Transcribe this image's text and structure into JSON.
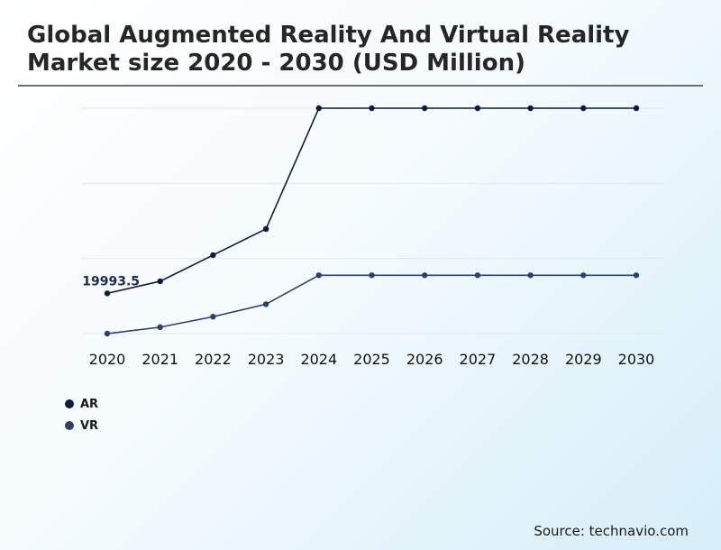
{
  "page": {
    "title": "Global Augmented Reality And Virtual Reality Market size 2020 - 2030 (USD Million)",
    "source": "Source: technavio.com"
  },
  "chart_data": {
    "type": "line",
    "title": "Global Augmented Reality And Virtual Reality Market size 2020 - 2030 (USD Million)",
    "xlabel": "",
    "ylabel": "",
    "categories": [
      "2020",
      "2021",
      "2022",
      "2023",
      "2024",
      "2025",
      "2026",
      "2027",
      "2028",
      "2029",
      "2030"
    ],
    "ylim": [
      10000,
      66000
    ],
    "grid": true,
    "legend_position": "bottom-left",
    "series": [
      {
        "name": "AR",
        "color": "#0d1b3e",
        "values": [
          19993.5,
          23000,
          29500,
          36000,
          66000,
          66000,
          66000,
          66000,
          66000,
          66000,
          66000
        ]
      },
      {
        "name": "VR",
        "color": "#2e3f6e",
        "values": [
          10000,
          11600,
          14200,
          17300,
          24500,
          24500,
          24500,
          24500,
          24500,
          24500,
          24500
        ]
      }
    ],
    "annotations": [
      {
        "series": 0,
        "index": 0,
        "text": "19993.5"
      }
    ]
  }
}
